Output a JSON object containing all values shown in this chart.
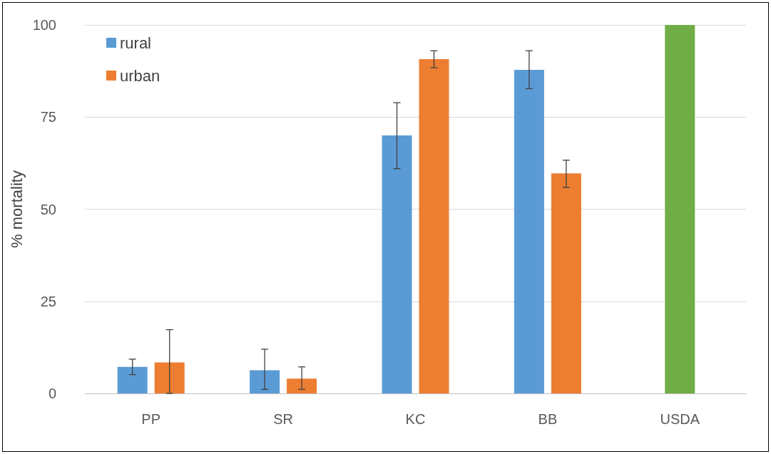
{
  "chart_data": {
    "type": "bar",
    "ylabel": "% mortality",
    "categories": [
      "PP",
      "SR",
      "KC",
      "BB",
      "USDA"
    ],
    "series": [
      {
        "name": "rural",
        "color": "#5b9bd5",
        "values": [
          7.2,
          6.3,
          70,
          87.8,
          null
        ],
        "errors": [
          [
            5.1,
            9.3
          ],
          [
            1.1,
            12
          ],
          [
            61,
            78.9
          ],
          [
            82.7,
            93
          ],
          null
        ]
      },
      {
        "name": "urban",
        "color": "#ed7d31",
        "values": [
          8.4,
          4,
          90.7,
          59.7,
          null
        ],
        "errors": [
          [
            0,
            17.3
          ],
          [
            1.1,
            7.2
          ],
          [
            88.4,
            93
          ],
          [
            55.9,
            63.3
          ],
          null
        ]
      },
      {
        "color": "#70ad47",
        "values": [
          null,
          null,
          null,
          null,
          100
        ]
      }
    ],
    "ylim": [
      0,
      100
    ],
    "yticks": [
      0,
      25,
      50,
      75,
      100
    ],
    "grid": "y",
    "legend": "top left"
  }
}
